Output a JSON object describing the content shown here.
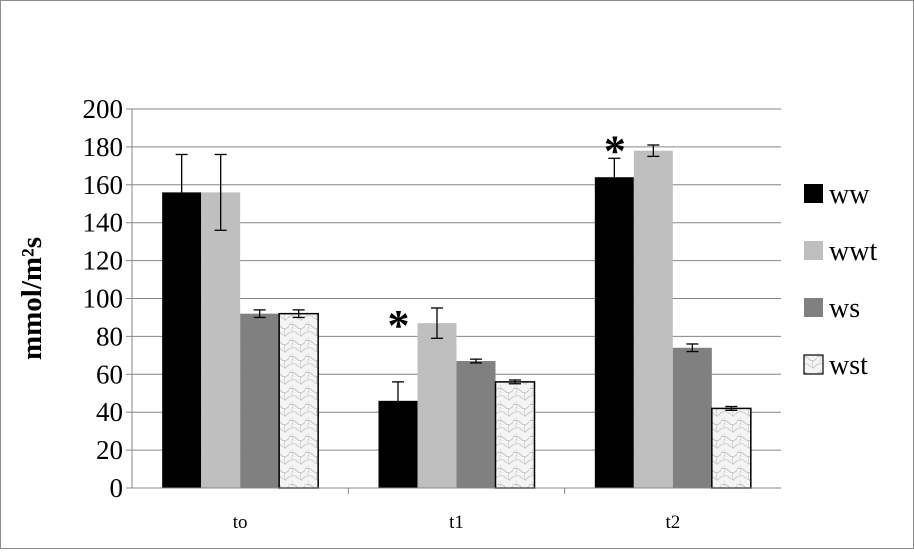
{
  "chart_data": {
    "type": "bar",
    "title": "",
    "xlabel": "",
    "ylabel": "mmol/m²s",
    "ylim": [
      0,
      200
    ],
    "ytick_step": 20,
    "grid": true,
    "legend_position": "right",
    "categories": [
      "to",
      "t1",
      "t2"
    ],
    "series": [
      {
        "name": "ww",
        "values": [
          156,
          46,
          164
        ],
        "errors": [
          20,
          10,
          10
        ],
        "color": "#000000",
        "pattern": "solid"
      },
      {
        "name": "wwt",
        "values": [
          156,
          87,
          178
        ],
        "errors": [
          20,
          8,
          3
        ],
        "color": "#bfbfbf",
        "pattern": "solid"
      },
      {
        "name": "ws",
        "values": [
          92,
          67,
          74
        ],
        "errors": [
          2,
          1,
          2
        ],
        "color": "#808080",
        "pattern": "solid"
      },
      {
        "name": "wst",
        "values": [
          92,
          56,
          42
        ],
        "errors": [
          2,
          1,
          1
        ],
        "color": "#f2f2f2",
        "pattern": "marble"
      }
    ],
    "annotations": [
      {
        "text": "*",
        "category": "t1",
        "y": 96
      },
      {
        "text": "*",
        "category": "t2",
        "y": 188
      }
    ]
  }
}
